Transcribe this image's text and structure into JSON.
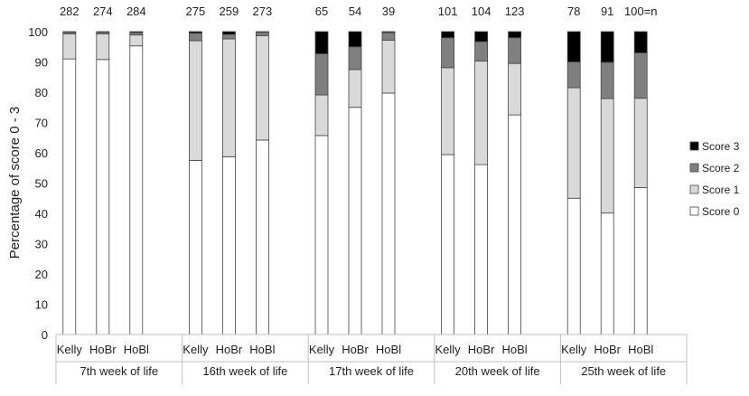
{
  "chart_data": {
    "type": "bar",
    "stacked": true,
    "ylabel": "Percentage of score 0 - 3",
    "ylim": [
      0,
      100
    ],
    "yticks": [
      0,
      10,
      20,
      30,
      40,
      50,
      60,
      70,
      80,
      90,
      100
    ],
    "grid": false,
    "legend_position": "right",
    "groups": [
      {
        "label": "7th week of life",
        "bars": [
          {
            "category": "Kelly",
            "n": "282",
            "score0": 91,
            "score1": 8.3,
            "score2": 0.5,
            "score3": 0.2
          },
          {
            "category": "HoBr",
            "n": "274",
            "score0": 90.8,
            "score1": 8.5,
            "score2": 0.5,
            "score3": 0.2
          },
          {
            "category": "HoBl",
            "n": "284",
            "score0": 95.3,
            "score1": 3.6,
            "score2": 0.8,
            "score3": 0.3
          }
        ]
      },
      {
        "label": "16th week of life",
        "bars": [
          {
            "category": "Kelly",
            "n": "275",
            "score0": 57.5,
            "score1": 39.5,
            "score2": 2.5,
            "score3": 0.5
          },
          {
            "category": "HoBr",
            "n": "259",
            "score0": 58.7,
            "score1": 38.9,
            "score2": 1.5,
            "score3": 0.9
          },
          {
            "category": "HoBl",
            "n": "273",
            "score0": 64.2,
            "score1": 34.5,
            "score2": 1.1,
            "score3": 0.2
          }
        ]
      },
      {
        "label": "17th week of life",
        "bars": [
          {
            "category": "Kelly",
            "n": "65",
            "score0": 65.7,
            "score1": 13.4,
            "score2": 13.6,
            "score3": 7.3
          },
          {
            "category": "HoBr",
            "n": "54",
            "score0": 75,
            "score1": 12.5,
            "score2": 7.5,
            "score3": 5
          },
          {
            "category": "HoBl",
            "n": "39",
            "score0": 79.7,
            "score1": 17.5,
            "score2": 2.5,
            "score3": 0.3
          }
        ]
      },
      {
        "label": "20th week of life",
        "bars": [
          {
            "category": "Kelly",
            "n": "101",
            "score0": 59.4,
            "score1": 28.7,
            "score2": 9.9,
            "score3": 2
          },
          {
            "category": "HoBr",
            "n": "104",
            "score0": 56.1,
            "score1": 34.2,
            "score2": 6.4,
            "score3": 3.3
          },
          {
            "category": "HoBl",
            "n": "123",
            "score0": 72.5,
            "score1": 17,
            "score2": 8.5,
            "score3": 2
          }
        ]
      },
      {
        "label": "25th week of life",
        "bars": [
          {
            "category": "Kelly",
            "n": "78",
            "score0": 45,
            "score1": 36.5,
            "score2": 8.5,
            "score3": 10
          },
          {
            "category": "HoBr",
            "n": "91",
            "score0": 40.1,
            "score1": 37.8,
            "score2": 12,
            "score3": 10.1
          },
          {
            "category": "HoBl",
            "n": "100=n",
            "score0": 48.5,
            "score1": 29.5,
            "score2": 15,
            "score3": 7
          }
        ]
      }
    ],
    "series": [
      {
        "name": "Score 0",
        "key": "score0",
        "color": "#ffffff"
      },
      {
        "name": "Score 1",
        "key": "score1",
        "color": "#d9d9d9"
      },
      {
        "name": "Score 2",
        "key": "score2",
        "color": "#7f7f7f"
      },
      {
        "name": "Score 3",
        "key": "score3",
        "color": "#000000"
      }
    ],
    "legend_order": [
      "Score 3",
      "Score 2",
      "Score 1",
      "Score 0"
    ]
  }
}
